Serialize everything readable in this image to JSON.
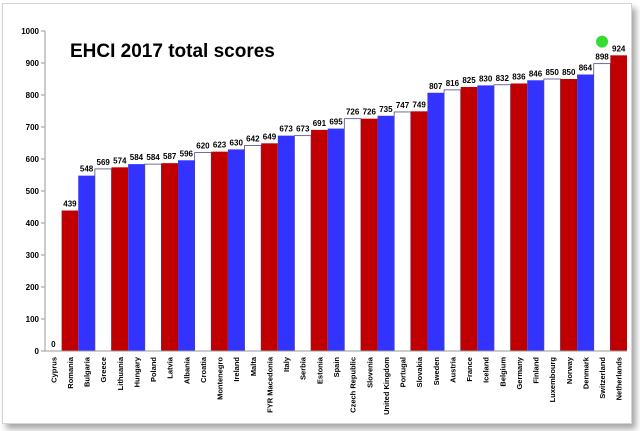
{
  "chart_data": {
    "type": "bar",
    "title": "EHCI 2017 total scores",
    "xlabel": "",
    "ylabel": "",
    "ylim": [
      0,
      1000
    ],
    "yticks": [
      0,
      100,
      200,
      300,
      400,
      500,
      600,
      700,
      800,
      900,
      1000
    ],
    "grid": false,
    "categories": [
      "Cyprus",
      "Romania",
      "Bulgaria",
      "Greece",
      "Lithuania",
      "Hungary",
      "Poland",
      "Latvia",
      "Albania",
      "Croatia",
      "Montenegro",
      "Ireland",
      "Malta",
      "FYR Macedonia",
      "Italy",
      "Serbia",
      "Estonia",
      "Spain",
      "Czech Republic",
      "Slovenia",
      "United Kingdom",
      "Portugal",
      "Slovakia",
      "Sweden",
      "Austria",
      "France",
      "Iceland",
      "Belgium",
      "Germany",
      "Finland",
      "Luxembourg",
      "Norway",
      "Denmark",
      "Switzerland",
      "Netherlands"
    ],
    "values": [
      0,
      439,
      548,
      569,
      574,
      584,
      584,
      587,
      596,
      620,
      623,
      630,
      642,
      649,
      673,
      673,
      691,
      695,
      726,
      726,
      735,
      747,
      749,
      807,
      816,
      825,
      830,
      832,
      836,
      846,
      850,
      850,
      864,
      898,
      924
    ],
    "bar_colors": [
      "#ffffff",
      "#c00000",
      "#3333ff",
      "#ffffff",
      "#c00000",
      "#3333ff",
      "#ffffff",
      "#c00000",
      "#3333ff",
      "#ffffff",
      "#c00000",
      "#3333ff",
      "#ffffff",
      "#c00000",
      "#3333ff",
      "#ffffff",
      "#c00000",
      "#3333ff",
      "#ffffff",
      "#c00000",
      "#3333ff",
      "#ffffff",
      "#c00000",
      "#3333ff",
      "#ffffff",
      "#c00000",
      "#3333ff",
      "#ffffff",
      "#c00000",
      "#3333ff",
      "#ffffff",
      "#c00000",
      "#3333ff",
      "#ffffff",
      "#c00000"
    ],
    "marker_color": "#33dd33",
    "marker_category": "Switzerland"
  }
}
